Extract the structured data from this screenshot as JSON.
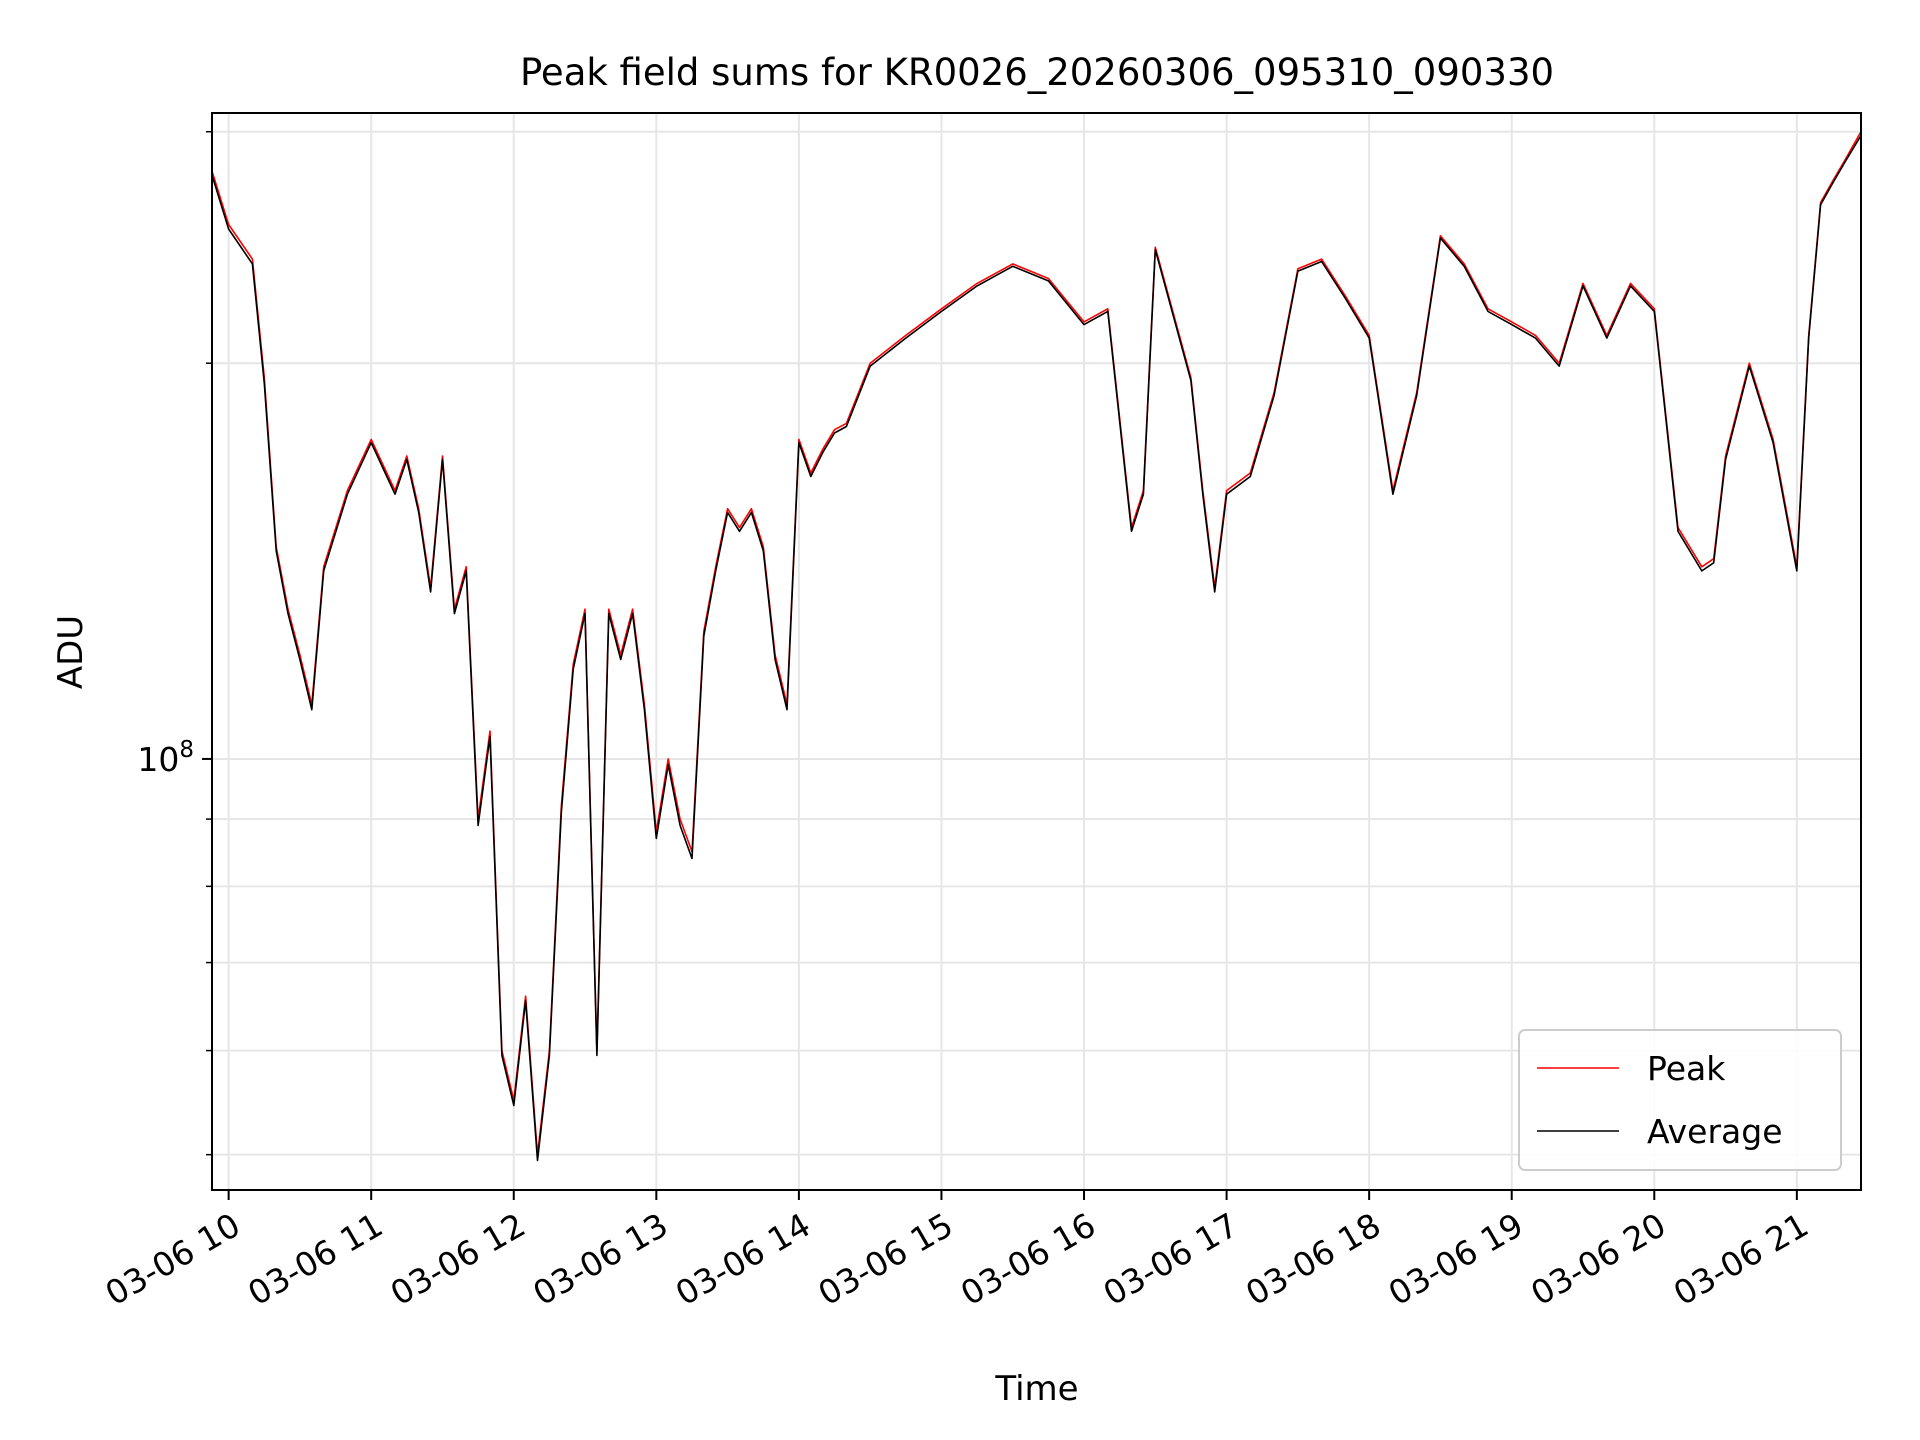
{
  "chart_data": {
    "type": "line",
    "title": "Peak field sums for KR0026_20260306_095310_090330",
    "xlabel": "Time",
    "ylabel": "ADU",
    "y_scale": "log",
    "xlim": [
      "2026-03-06 09:53",
      "2026-03-06 21:27"
    ],
    "ylim": [
      47000000,
      310000000
    ],
    "grid": true,
    "legend_position": "lower-right",
    "x_ticks": [
      "03-06 10",
      "03-06 11",
      "03-06 12",
      "03-06 13",
      "03-06 14",
      "03-06 15",
      "03-06 16",
      "03-06 17",
      "03-06 18",
      "03-06 19",
      "03-06 20",
      "03-06 21"
    ],
    "y_ticks": [
      {
        "value": 100000000,
        "base": "10",
        "exponent": "8"
      }
    ],
    "x": [
      "09:53",
      "10:00",
      "10:10",
      "10:15",
      "10:20",
      "10:25",
      "10:30",
      "10:35",
      "10:40",
      "10:50",
      "11:00",
      "11:10",
      "11:15",
      "11:20",
      "11:25",
      "11:30",
      "11:35",
      "11:40",
      "11:45",
      "11:50",
      "11:55",
      "12:00",
      "12:05",
      "12:10",
      "12:15",
      "12:20",
      "12:25",
      "12:30",
      "12:35",
      "12:40",
      "12:45",
      "12:50",
      "12:55",
      "13:00",
      "13:05",
      "13:10",
      "13:15",
      "13:20",
      "13:25",
      "13:30",
      "13:35",
      "13:40",
      "13:45",
      "13:50",
      "13:55",
      "14:00",
      "14:05",
      "14:10",
      "14:15",
      "14:20",
      "14:30",
      "14:45",
      "15:00",
      "15:15",
      "15:30",
      "15:45",
      "16:00",
      "16:10",
      "16:20",
      "16:25",
      "16:30",
      "16:45",
      "16:50",
      "16:55",
      "17:00",
      "17:10",
      "17:20",
      "17:30",
      "17:40",
      "17:50",
      "18:00",
      "18:10",
      "18:20",
      "18:30",
      "18:40",
      "18:50",
      "19:00",
      "19:10",
      "19:20",
      "19:30",
      "19:40",
      "19:50",
      "20:00",
      "20:10",
      "20:20",
      "20:25",
      "20:30",
      "20:40",
      "20:50",
      "21:00",
      "21:05",
      "21:10",
      "21:15",
      "21:20",
      "21:27"
    ],
    "series": [
      {
        "name": "Peak",
        "color": "#ff0000",
        "values": [
          280000000,
          255000000,
          240000000,
          195000000,
          145000000,
          130000000,
          120000000,
          110000000,
          140000000,
          160000000,
          175000000,
          160000000,
          170000000,
          155000000,
          135000000,
          170000000,
          130000000,
          140000000,
          90000000,
          105000000,
          60000000,
          55000000,
          66000000,
          50000000,
          60000000,
          92000000,
          118000000,
          130000000,
          60000000,
          130000000,
          120000000,
          130000000,
          110000000,
          88000000,
          100000000,
          90000000,
          85000000,
          125000000,
          140000000,
          155000000,
          150000000,
          155000000,
          145000000,
          120000000,
          110000000,
          175000000,
          165000000,
          172000000,
          178000000,
          180000000,
          200000000,
          210000000,
          220000000,
          230000000,
          238000000,
          232000000,
          215000000,
          220000000,
          150000000,
          160000000,
          245000000,
          195000000,
          160000000,
          135000000,
          160000000,
          165000000,
          190000000,
          236000000,
          240000000,
          225000000,
          210000000,
          160000000,
          190000000,
          250000000,
          238000000,
          220000000,
          215000000,
          210000000,
          200000000,
          230000000,
          210000000,
          230000000,
          220000000,
          150000000,
          140000000,
          142000000,
          170000000,
          200000000,
          175000000,
          140000000,
          210000000,
          265000000,
          275000000,
          285000000,
          300000000
        ]
      },
      {
        "name": "Average",
        "color": "#000000",
        "values": [
          278000000,
          253000000,
          238000000,
          193000000,
          144000000,
          129000000,
          119000000,
          109000000,
          139000000,
          159000000,
          174000000,
          159000000,
          169000000,
          154000000,
          134000000,
          169000000,
          129000000,
          139000000,
          89000000,
          104000000,
          59500000,
          54500000,
          65500000,
          49500000,
          59500000,
          91000000,
          117000000,
          129000000,
          59500000,
          129000000,
          119000000,
          129000000,
          109000000,
          87000000,
          99000000,
          89000000,
          84000000,
          124000000,
          139000000,
          154000000,
          149000000,
          154000000,
          144000000,
          119000000,
          109000000,
          174000000,
          164000000,
          171000000,
          177000000,
          179000000,
          199000000,
          209000000,
          219000000,
          229000000,
          237000000,
          231000000,
          214000000,
          219000000,
          149000000,
          159000000,
          244000000,
          194000000,
          159000000,
          134000000,
          159000000,
          164000000,
          189000000,
          235000000,
          239000000,
          224000000,
          209000000,
          159000000,
          189000000,
          249000000,
          237000000,
          219000000,
          214000000,
          209000000,
          199000000,
          229000000,
          209000000,
          229000000,
          219000000,
          149000000,
          139000000,
          141000000,
          169000000,
          199000000,
          174000000,
          139000000,
          209000000,
          264000000,
          274000000,
          284000000,
          298000000
        ]
      }
    ]
  }
}
